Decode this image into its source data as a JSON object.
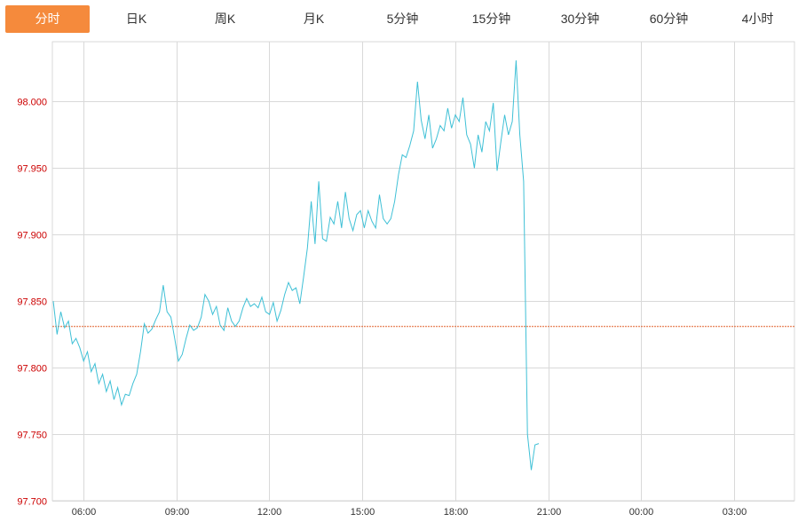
{
  "tabs": [
    {
      "label": "分时",
      "active": true
    },
    {
      "label": "日K",
      "active": false
    },
    {
      "label": "周K",
      "active": false
    },
    {
      "label": "月K",
      "active": false
    },
    {
      "label": "5分钟",
      "active": false
    },
    {
      "label": "15分钟",
      "active": false
    },
    {
      "label": "30分钟",
      "active": false
    },
    {
      "label": "60分钟",
      "active": false
    },
    {
      "label": "4小时",
      "active": false
    }
  ],
  "colors": {
    "active_tab": "#f58a3c",
    "price_line": "#3fc0d6",
    "reference_line": "#e0602c",
    "y_labels": "#cc0000",
    "grid": "#d9d9d9"
  },
  "chart_data": {
    "type": "line",
    "title": "",
    "xlabel": "",
    "ylabel": "",
    "y_ticks": [
      "97.700",
      "97.750",
      "97.800",
      "97.850",
      "97.900",
      "97.950",
      "98.000"
    ],
    "x_ticks": [
      "06:00",
      "09:00",
      "12:00",
      "15:00",
      "18:00",
      "21:00",
      "00:00",
      "03:00"
    ],
    "ylim": [
      97.7,
      98.045
    ],
    "reference_value": 97.831,
    "grid": true,
    "series": [
      {
        "values": [
          97.85,
          97.825,
          97.842,
          97.83,
          97.835,
          97.818,
          97.822,
          97.815,
          97.805,
          97.812,
          97.797,
          97.803,
          97.788,
          97.795,
          97.782,
          97.79,
          97.776,
          97.785,
          97.772,
          97.78,
          97.779,
          97.788,
          97.795,
          97.812,
          97.833,
          97.826,
          97.829,
          97.836,
          97.842,
          97.862,
          97.842,
          97.838,
          97.822,
          97.805,
          97.81,
          97.822,
          97.832,
          97.828,
          97.83,
          97.838,
          97.855,
          97.85,
          97.84,
          97.846,
          97.832,
          97.828,
          97.845,
          97.835,
          97.831,
          97.835,
          97.845,
          97.852,
          97.846,
          97.848,
          97.845,
          97.853,
          97.842,
          97.84,
          97.849,
          97.835,
          97.843,
          97.855,
          97.864,
          97.858,
          97.86,
          97.848,
          97.868,
          97.89,
          97.925,
          97.893,
          97.94,
          97.897,
          97.895,
          97.913,
          97.908,
          97.925,
          97.905,
          97.932,
          97.912,
          97.903,
          97.915,
          97.918,
          97.905,
          97.918,
          97.91,
          97.905,
          97.93,
          97.912,
          97.908,
          97.912,
          97.925,
          97.945,
          97.96,
          97.958,
          97.967,
          97.978,
          98.015,
          97.986,
          97.972,
          97.99,
          97.965,
          97.972,
          97.982,
          97.978,
          97.995,
          97.98,
          97.99,
          97.985,
          98.003,
          97.975,
          97.968,
          97.95,
          97.975,
          97.962,
          97.985,
          97.978,
          97.999,
          97.948,
          97.97,
          97.99,
          97.975,
          97.985,
          98.031,
          97.975,
          97.94,
          97.75,
          97.723,
          97.742,
          97.743
        ]
      }
    ]
  }
}
